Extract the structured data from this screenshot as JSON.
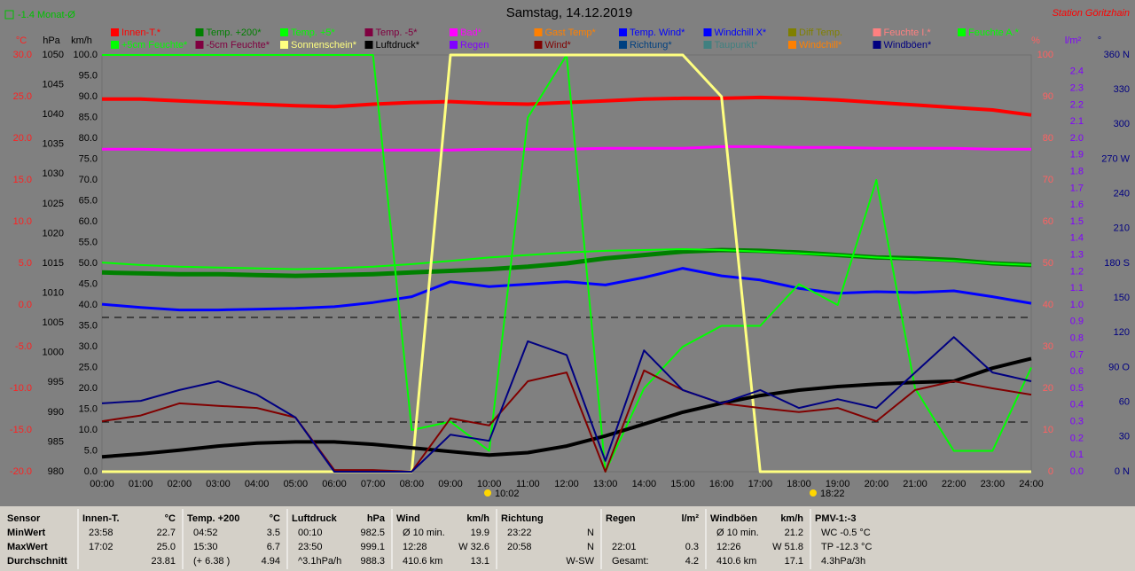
{
  "chart_data": {
    "type": "line",
    "title": "Samstag, 14.12.2019",
    "subtitle": "Station Göritzhain",
    "monthly_note": "-1.4 Monat-Ø",
    "annotations": [
      "10:02",
      "18:22"
    ],
    "categories": [
      "00:00",
      "01:00",
      "02:00",
      "03:00",
      "04:00",
      "05:00",
      "06:00",
      "07:00",
      "08:00",
      "09:00",
      "10:00",
      "11:00",
      "12:00",
      "13:00",
      "14:00",
      "15:00",
      "16:00",
      "17:00",
      "18:00",
      "19:00",
      "20:00",
      "21:00",
      "22:00",
      "23:00",
      "24:00"
    ],
    "ylabel": "°C",
    "ylim": [
      -20,
      30
    ],
    "yticks": [
      {
        "value": 30,
        "label": "30.0"
      },
      {
        "value": 25,
        "label": "25.0"
      },
      {
        "value": 20,
        "label": "20.0"
      },
      {
        "value": 15,
        "label": "15.0"
      },
      {
        "value": 10,
        "label": "10.0"
      },
      {
        "value": 5,
        "label": "5.0"
      },
      {
        "value": 0,
        "label": "0.0"
      },
      {
        "value": -5,
        "label": "-5.0"
      },
      {
        "value": -10,
        "label": "-10.0"
      },
      {
        "value": -15,
        "label": "-15.0"
      },
      {
        "value": -20,
        "label": "-20.0"
      }
    ],
    "y2label": "%",
    "y2lim": [
      0,
      100
    ],
    "y2ticks": [
      100,
      90,
      80,
      70,
      60,
      50,
      40,
      30,
      20,
      10,
      0
    ],
    "y3label": "hPa",
    "y3lim": [
      980,
      1050
    ],
    "y3ticks": [
      1050,
      1045,
      1040,
      1035,
      1030,
      1025,
      1020,
      1015,
      1010,
      1005,
      1000,
      995,
      990,
      985,
      980
    ],
    "y4label": "km/h",
    "y4lim": [
      0,
      100
    ],
    "y4ticks": [
      {
        "value": 100,
        "label": "100.0"
      },
      {
        "value": 95,
        "label": "95.0"
      },
      {
        "value": 90,
        "label": "90.0"
      },
      {
        "value": 85,
        "label": "85.0"
      },
      {
        "value": 80,
        "label": "80.0"
      },
      {
        "value": 75,
        "label": "75.0"
      },
      {
        "value": 70,
        "label": "70.0"
      },
      {
        "value": 65,
        "label": "65.0"
      },
      {
        "value": 60,
        "label": "60.0"
      },
      {
        "value": 55,
        "label": "55.0"
      },
      {
        "value": 50,
        "label": "50.0"
      },
      {
        "value": 45,
        "label": "45.0"
      },
      {
        "value": 40,
        "label": "40.0"
      },
      {
        "value": 35,
        "label": "35.0"
      },
      {
        "value": 30,
        "label": "30.0"
      },
      {
        "value": 25,
        "label": "25.0"
      },
      {
        "value": 20,
        "label": "20.0"
      },
      {
        "value": 15,
        "label": "15.0"
      },
      {
        "value": 10,
        "label": "10.0"
      },
      {
        "value": 5,
        "label": "5.0"
      },
      {
        "value": 0,
        "label": "0.0"
      }
    ],
    "y5label": "l/m²",
    "y5lim": [
      0,
      2.5
    ],
    "y5ticks": [
      2.4,
      2.3,
      2.2,
      2.1,
      {
        "value": 2,
        "label": "2.0"
      },
      1.9,
      1.8,
      1.7,
      1.6,
      1.5,
      1.4,
      1.3,
      1.2,
      1.1,
      {
        "value": 1,
        "label": "1.0"
      },
      0.9,
      0.8,
      0.7,
      0.6,
      0.5,
      0.4,
      0.3,
      0.2,
      0.1,
      {
        "value": 0,
        "label": "0.0"
      }
    ],
    "y6label": "°",
    "y6lim": [
      0,
      360
    ],
    "y6ticks": [
      {
        "value": 360,
        "label": "360 N"
      },
      330,
      300,
      {
        "value": 270,
        "label": "270 W"
      },
      240,
      210,
      {
        "value": 180,
        "label": "180 S"
      },
      150,
      120,
      {
        "value": 90,
        "label": "90 O"
      },
      60,
      30,
      {
        "value": 0,
        "label": "0 N"
      }
    ],
    "axis_colors": {
      "y": "#ff2020",
      "y2": "#ff6060",
      "y3": "#000000",
      "y4": "#000000",
      "y5": "#8000ff",
      "y6": "#000080"
    },
    "series": [
      {
        "name": "Innen-T.*",
        "color": "#ff0000",
        "axis": "y",
        "width": 4,
        "values": [
          24.7,
          24.7,
          24.5,
          24.3,
          24.1,
          23.9,
          23.8,
          24.1,
          24.3,
          24.4,
          24.2,
          24.1,
          24.3,
          24.5,
          24.7,
          24.8,
          24.8,
          24.9,
          24.8,
          24.6,
          24.3,
          24.0,
          23.7,
          23.4,
          22.8
        ]
      },
      {
        "name": "Temp. +200*",
        "color": "#008000",
        "axis": "y",
        "width": 5,
        "values": [
          3.9,
          3.8,
          3.7,
          3.7,
          3.6,
          3.5,
          3.6,
          3.7,
          3.9,
          4.1,
          4.3,
          4.6,
          5.0,
          5.6,
          6.0,
          6.4,
          6.6,
          6.5,
          6.3,
          6.0,
          5.7,
          5.6,
          5.4,
          5.0,
          4.8
        ]
      },
      {
        "name": "Temp. +5*",
        "color": "#00ff00",
        "axis": "y",
        "width": 2,
        "values": [
          5.1,
          4.8,
          4.6,
          4.5,
          4.4,
          4.3,
          4.4,
          4.6,
          4.9,
          5.3,
          5.7,
          6.0,
          6.3,
          6.5,
          6.6,
          6.7,
          6.6,
          6.4,
          6.2,
          6.0,
          5.7,
          5.5,
          5.3,
          5.0,
          4.8
        ]
      },
      {
        "name": "Temp. -5*",
        "color": "#800040"
      },
      {
        "name": "Bad*",
        "color": "#ff00ff",
        "axis": "y",
        "width": 3,
        "values": [
          18.7,
          18.7,
          18.6,
          18.6,
          18.6,
          18.6,
          18.6,
          18.6,
          18.6,
          18.6,
          18.7,
          18.7,
          18.7,
          18.8,
          18.8,
          18.8,
          19.0,
          19.0,
          18.9,
          18.9,
          18.8,
          18.8,
          18.8,
          18.7,
          18.7
        ]
      },
      {
        "name": "Gast Temp*",
        "color": "#ff8000"
      },
      {
        "name": "Temp. Wind*",
        "color": "#0000ff"
      },
      {
        "name": "Windchill X*",
        "color": "#0000ff",
        "axis": "y",
        "width": 3,
        "values": [
          0.1,
          -0.3,
          -0.6,
          -0.6,
          -0.5,
          -0.4,
          -0.2,
          0.3,
          1.0,
          2.8,
          2.2,
          2.5,
          2.8,
          2.4,
          3.3,
          4.4,
          3.5,
          3.0,
          2.0,
          1.4,
          1.6,
          1.5,
          1.7,
          1.0,
          0.2
        ]
      },
      {
        "name": "Diff Temp.",
        "color": "#808000"
      },
      {
        "name": "Feuchte I.*",
        "color": "#ff8080"
      },
      {
        "name": "Feuchte A.*",
        "color": "#00ff00",
        "axis": "y2",
        "width": 2,
        "values": [
          100,
          100,
          100,
          100,
          100,
          100,
          100,
          100,
          10,
          12,
          5,
          85,
          100,
          0,
          20,
          30,
          35,
          35,
          45,
          40,
          70,
          20,
          5,
          5,
          25
        ]
      },
      {
        "name": "+5cm Feuchte*",
        "color": "#00ff00"
      },
      {
        "name": "-5cm Feuchte*",
        "color": "#800040"
      },
      {
        "name": "Sonnenschein*",
        "color": "#ffff80",
        "axis": "y2",
        "width": 3,
        "values": [
          0,
          0,
          0,
          0,
          0,
          0,
          0,
          0,
          0,
          100,
          100,
          100,
          100,
          100,
          100,
          100,
          90,
          0,
          0,
          0,
          0,
          0,
          0,
          0,
          0
        ]
      },
      {
        "name": "Luftdruck*",
        "color": "#000000",
        "axis": "y3",
        "width": 4,
        "values": [
          982.5,
          983.0,
          983.6,
          984.3,
          984.8,
          985.0,
          985.0,
          984.6,
          984.0,
          983.4,
          982.8,
          983.2,
          984.3,
          986.0,
          988.0,
          990.0,
          991.5,
          992.8,
          993.7,
          994.3,
          994.7,
          995.0,
          995.2,
          997.4,
          999.0
        ]
      },
      {
        "name": "Regen",
        "color": "#8000ff"
      },
      {
        "name": "Wind*",
        "color": "#800000",
        "axis": "y4",
        "width": 2,
        "values": [
          12.1,
          13.5,
          16.4,
          15.8,
          15.3,
          13.0,
          0.4,
          0.4,
          0,
          12.8,
          11.1,
          21.7,
          23.8,
          0,
          24.3,
          19.6,
          16.4,
          15.3,
          14.3,
          15.3,
          12.1,
          19.6,
          21.7,
          20.0,
          18.5
        ]
      },
      {
        "name": "Richtung*",
        "color": "#004080"
      },
      {
        "name": "Taupunkt*",
        "color": "#408080"
      },
      {
        "name": "Windchill*",
        "color": "#ff8000"
      },
      {
        "name": "Windböen*",
        "color": "#000080",
        "axis": "y4",
        "width": 2,
        "values": [
          16.4,
          17.0,
          19.6,
          21.7,
          18.5,
          13.0,
          0,
          0,
          0,
          8.9,
          7.4,
          31.3,
          28.0,
          2.6,
          29.1,
          19.6,
          16.4,
          19.6,
          15.3,
          17.4,
          15.3,
          23.8,
          32.3,
          23.8,
          21.7
        ]
      }
    ]
  },
  "table": {
    "row_titles": [
      "Sensor",
      "MinWert",
      "MaxWert",
      "Durchschnitt"
    ],
    "columns": [
      {
        "title": "Innen-T.",
        "unit": "°C",
        "cells": [
          [
            "23:58",
            "22.7"
          ],
          [
            "17:02",
            "25.0"
          ],
          [
            "23.81"
          ]
        ]
      },
      {
        "title": "Temp. +200",
        "unit": "°C",
        "cells": [
          [
            "04:52",
            "3.5"
          ],
          [
            "15:30",
            "6.7"
          ],
          [
            "(+ 6.38 )",
            "4.94"
          ]
        ]
      },
      {
        "title": "Luftdruck",
        "unit": "hPa",
        "cells": [
          [
            "00:10",
            "982.5"
          ],
          [
            "23:50",
            "999.1"
          ],
          [
            "^3.1hPa/h",
            "988.3"
          ]
        ]
      },
      {
        "title": "Wind",
        "unit": "km/h",
        "cells": [
          [
            "Ø 10 min.",
            "19.9"
          ],
          [
            "12:28",
            "W 32.6"
          ],
          [
            "410.6 km",
            "13.1"
          ]
        ]
      },
      {
        "title": "Richtung",
        "cells": [
          [
            "23:22",
            "N"
          ],
          [
            "20:58",
            "N"
          ],
          [
            "W-SW"
          ]
        ]
      },
      {
        "title": "Regen",
        "unit": "l/m²",
        "cells": [
          [],
          [
            "22:01",
            "0.3"
          ],
          [
            "Gesamt:",
            "4.2"
          ]
        ]
      },
      {
        "title": "Windböen",
        "unit": "km/h",
        "cells": [
          [
            "Ø 10 min.",
            "21.2"
          ],
          [
            "12:26",
            "W 51.8"
          ],
          [
            "410.6 km",
            "17.1"
          ]
        ]
      },
      {
        "title": "PMV-1:-3",
        "cells": [
          [
            "WC -0.5 °C"
          ],
          [
            "TP -12.3 °C"
          ],
          [
            "4.3hPa/3h"
          ]
        ]
      }
    ]
  }
}
